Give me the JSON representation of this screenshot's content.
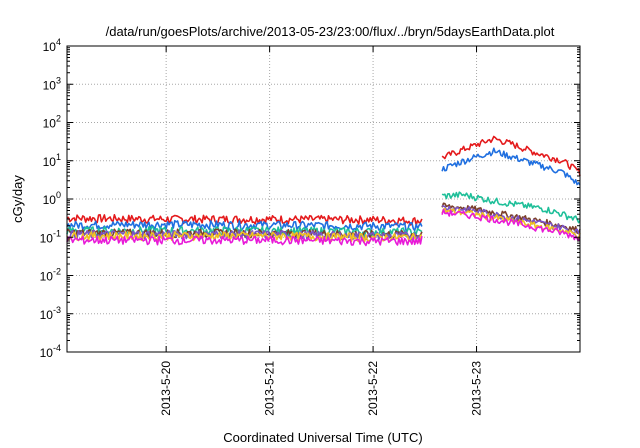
{
  "chart_data": {
    "type": "line",
    "title": "/data/run/goesPlots/archive/2013-05-23/23:00/flux/../bryn/5daysEarthData.plot",
    "xlabel": "Coordinated Universal Time (UTC)",
    "ylabel": "cGy/day",
    "x_range": [
      "2013-05-19 01:00",
      "2013-05-24 00:00"
    ],
    "x_ticks": [
      "2013-5-20",
      "2013-5-21",
      "2013-5-22",
      "2013-5-23"
    ],
    "y_scale": "log",
    "y_range": [
      0.0001,
      10000
    ],
    "y_ticks": [
      {
        "base": "10",
        "exp": "-4"
      },
      {
        "base": "10",
        "exp": "-3"
      },
      {
        "base": "10",
        "exp": "-2"
      },
      {
        "base": "10",
        "exp": "-1"
      },
      {
        "base": "10",
        "exp": "0"
      },
      {
        "base": "10",
        "exp": "1"
      },
      {
        "base": "10",
        "exp": "2"
      },
      {
        "base": "10",
        "exp": "3"
      },
      {
        "base": "10",
        "exp": "4"
      }
    ],
    "grid": true,
    "gap": [
      "2013-05-22 11:30",
      "2013-05-22 16:00"
    ],
    "series": [
      {
        "color": "#e41a1c",
        "points": [
          [
            "2013-05-19 01:00",
            0.32
          ],
          [
            "2013-05-20 00:00",
            0.3
          ],
          [
            "2013-05-21 00:00",
            0.3
          ],
          [
            "2013-05-22 00:00",
            0.29
          ],
          [
            "2013-05-22 11:00",
            0.27
          ],
          [
            "2013-05-22 16:00",
            12
          ],
          [
            "2013-05-22 21:00",
            20
          ],
          [
            "2013-05-23 04:00",
            38
          ],
          [
            "2013-05-23 08:00",
            28
          ],
          [
            "2013-05-23 14:00",
            16
          ],
          [
            "2013-05-23 20:00",
            10
          ],
          [
            "2013-05-24 00:00",
            5
          ]
        ]
      },
      {
        "color": "#1f6fe0",
        "points": [
          [
            "2013-05-19 01:00",
            0.21
          ],
          [
            "2013-05-20 00:00",
            0.22
          ],
          [
            "2013-05-21 00:00",
            0.21
          ],
          [
            "2013-05-22 00:00",
            0.2
          ],
          [
            "2013-05-22 11:00",
            0.19
          ],
          [
            "2013-05-22 16:00",
            6
          ],
          [
            "2013-05-22 21:00",
            10
          ],
          [
            "2013-05-23 04:00",
            18
          ],
          [
            "2013-05-23 08:00",
            13
          ],
          [
            "2013-05-23 14:00",
            8
          ],
          [
            "2013-05-23 20:00",
            5
          ],
          [
            "2013-05-24 00:00",
            2.3
          ]
        ]
      },
      {
        "color": "#1fbf99",
        "points": [
          [
            "2013-05-19 01:00",
            0.15
          ],
          [
            "2013-05-20 00:00",
            0.15
          ],
          [
            "2013-05-21 00:00",
            0.15
          ],
          [
            "2013-05-22 00:00",
            0.14
          ],
          [
            "2013-05-22 11:00",
            0.14
          ],
          [
            "2013-05-22 16:00",
            1.2
          ],
          [
            "2013-05-22 21:00",
            1.3
          ],
          [
            "2013-05-23 04:00",
            0.9
          ],
          [
            "2013-05-23 10:00",
            0.7
          ],
          [
            "2013-05-23 16:00",
            0.55
          ],
          [
            "2013-05-23 20:00",
            0.4
          ],
          [
            "2013-05-24 00:00",
            0.28
          ]
        ]
      },
      {
        "color": "#7b3f2a",
        "points": [
          [
            "2013-05-19 01:00",
            0.13
          ],
          [
            "2013-05-20 00:00",
            0.13
          ],
          [
            "2013-05-21 00:00",
            0.13
          ],
          [
            "2013-05-22 00:00",
            0.12
          ],
          [
            "2013-05-22 11:00",
            0.12
          ],
          [
            "2013-05-22 16:00",
            0.65
          ],
          [
            "2013-05-22 21:00",
            0.6
          ],
          [
            "2013-05-23 04:00",
            0.45
          ],
          [
            "2013-05-23 12:00",
            0.3
          ],
          [
            "2013-05-23 20:00",
            0.2
          ],
          [
            "2013-05-24 00:00",
            0.15
          ]
        ]
      },
      {
        "color": "#7b52c7",
        "points": [
          [
            "2013-05-19 01:00",
            0.12
          ],
          [
            "2013-05-20 00:00",
            0.12
          ],
          [
            "2013-05-21 00:00",
            0.12
          ],
          [
            "2013-05-22 00:00",
            0.11
          ],
          [
            "2013-05-22 11:00",
            0.11
          ],
          [
            "2013-05-22 16:00",
            0.6
          ],
          [
            "2013-05-22 21:00",
            0.55
          ],
          [
            "2013-05-23 04:00",
            0.4
          ],
          [
            "2013-05-23 12:00",
            0.27
          ],
          [
            "2013-05-23 20:00",
            0.18
          ],
          [
            "2013-05-24 00:00",
            0.13
          ]
        ]
      },
      {
        "color": "#f0c020",
        "points": [
          [
            "2013-05-19 01:00",
            0.11
          ],
          [
            "2013-05-20 00:00",
            0.11
          ],
          [
            "2013-05-21 00:00",
            0.11
          ],
          [
            "2013-05-22 00:00",
            0.1
          ],
          [
            "2013-05-22 11:00",
            0.1
          ],
          [
            "2013-05-22 16:00",
            0.5
          ],
          [
            "2013-05-22 21:00",
            0.45
          ],
          [
            "2013-05-23 04:00",
            0.33
          ],
          [
            "2013-05-23 12:00",
            0.22
          ],
          [
            "2013-05-23 20:00",
            0.15
          ],
          [
            "2013-05-24 00:00",
            0.11
          ]
        ]
      },
      {
        "color": "#e81ad8",
        "points": [
          [
            "2013-05-19 01:00",
            0.085
          ],
          [
            "2013-05-20 00:00",
            0.085
          ],
          [
            "2013-05-21 00:00",
            0.085
          ],
          [
            "2013-05-22 00:00",
            0.08
          ],
          [
            "2013-05-22 11:00",
            0.08
          ],
          [
            "2013-05-22 16:00",
            0.45
          ],
          [
            "2013-05-22 21:00",
            0.4
          ],
          [
            "2013-05-23 04:00",
            0.3
          ],
          [
            "2013-05-23 12:00",
            0.2
          ],
          [
            "2013-05-23 20:00",
            0.13
          ],
          [
            "2013-05-24 00:00",
            0.095
          ]
        ]
      }
    ]
  }
}
